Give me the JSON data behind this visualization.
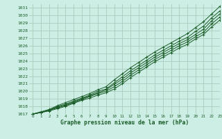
{
  "bg_color": "#cceee4",
  "grid_color": "#aaccbb",
  "line_color": "#1a5c28",
  "text_color": "#1a5c28",
  "xlabel": "Graphe pression niveau de la mer (hPa)",
  "xlim": [
    -0.5,
    23
  ],
  "ylim": [
    1017,
    1031.5
  ],
  "xticks": [
    0,
    1,
    2,
    3,
    4,
    5,
    6,
    7,
    8,
    9,
    10,
    11,
    12,
    13,
    14,
    15,
    16,
    17,
    18,
    19,
    20,
    21,
    22,
    23
  ],
  "yticks": [
    1017,
    1018,
    1019,
    1020,
    1021,
    1022,
    1023,
    1024,
    1025,
    1026,
    1027,
    1028,
    1029,
    1030,
    1031
  ],
  "lines": [
    [
      1017.0,
      1017.2,
      1017.4,
      1017.7,
      1018.0,
      1018.4,
      1018.8,
      1019.1,
      1019.5,
      1019.8,
      1020.3,
      1021.0,
      1021.8,
      1022.5,
      1023.2,
      1023.9,
      1024.5,
      1025.1,
      1025.7,
      1026.2,
      1026.9,
      1027.5,
      1028.5,
      1029.4
    ],
    [
      1017.0,
      1017.2,
      1017.5,
      1017.8,
      1018.1,
      1018.5,
      1018.9,
      1019.3,
      1019.7,
      1020.0,
      1020.6,
      1021.3,
      1022.1,
      1022.8,
      1023.5,
      1024.2,
      1024.8,
      1025.4,
      1026.0,
      1026.5,
      1027.2,
      1027.8,
      1028.9,
      1029.8
    ],
    [
      1017.0,
      1017.2,
      1017.5,
      1017.9,
      1018.2,
      1018.6,
      1019.0,
      1019.4,
      1019.8,
      1020.2,
      1020.9,
      1021.6,
      1022.4,
      1023.1,
      1023.8,
      1024.5,
      1025.1,
      1025.7,
      1026.3,
      1026.8,
      1027.5,
      1028.2,
      1029.3,
      1030.2
    ],
    [
      1017.0,
      1017.2,
      1017.5,
      1018.0,
      1018.3,
      1018.7,
      1019.1,
      1019.5,
      1020.0,
      1020.3,
      1021.1,
      1021.9,
      1022.7,
      1023.4,
      1024.1,
      1024.8,
      1025.4,
      1026.0,
      1026.6,
      1027.1,
      1027.9,
      1028.6,
      1029.7,
      1030.6
    ],
    [
      1017.0,
      1017.3,
      1017.6,
      1018.1,
      1018.5,
      1018.9,
      1019.3,
      1019.7,
      1020.2,
      1020.6,
      1021.5,
      1022.3,
      1023.1,
      1023.8,
      1024.5,
      1025.2,
      1025.8,
      1026.4,
      1027.0,
      1027.6,
      1028.4,
      1029.2,
      1030.2,
      1031.2
    ]
  ]
}
